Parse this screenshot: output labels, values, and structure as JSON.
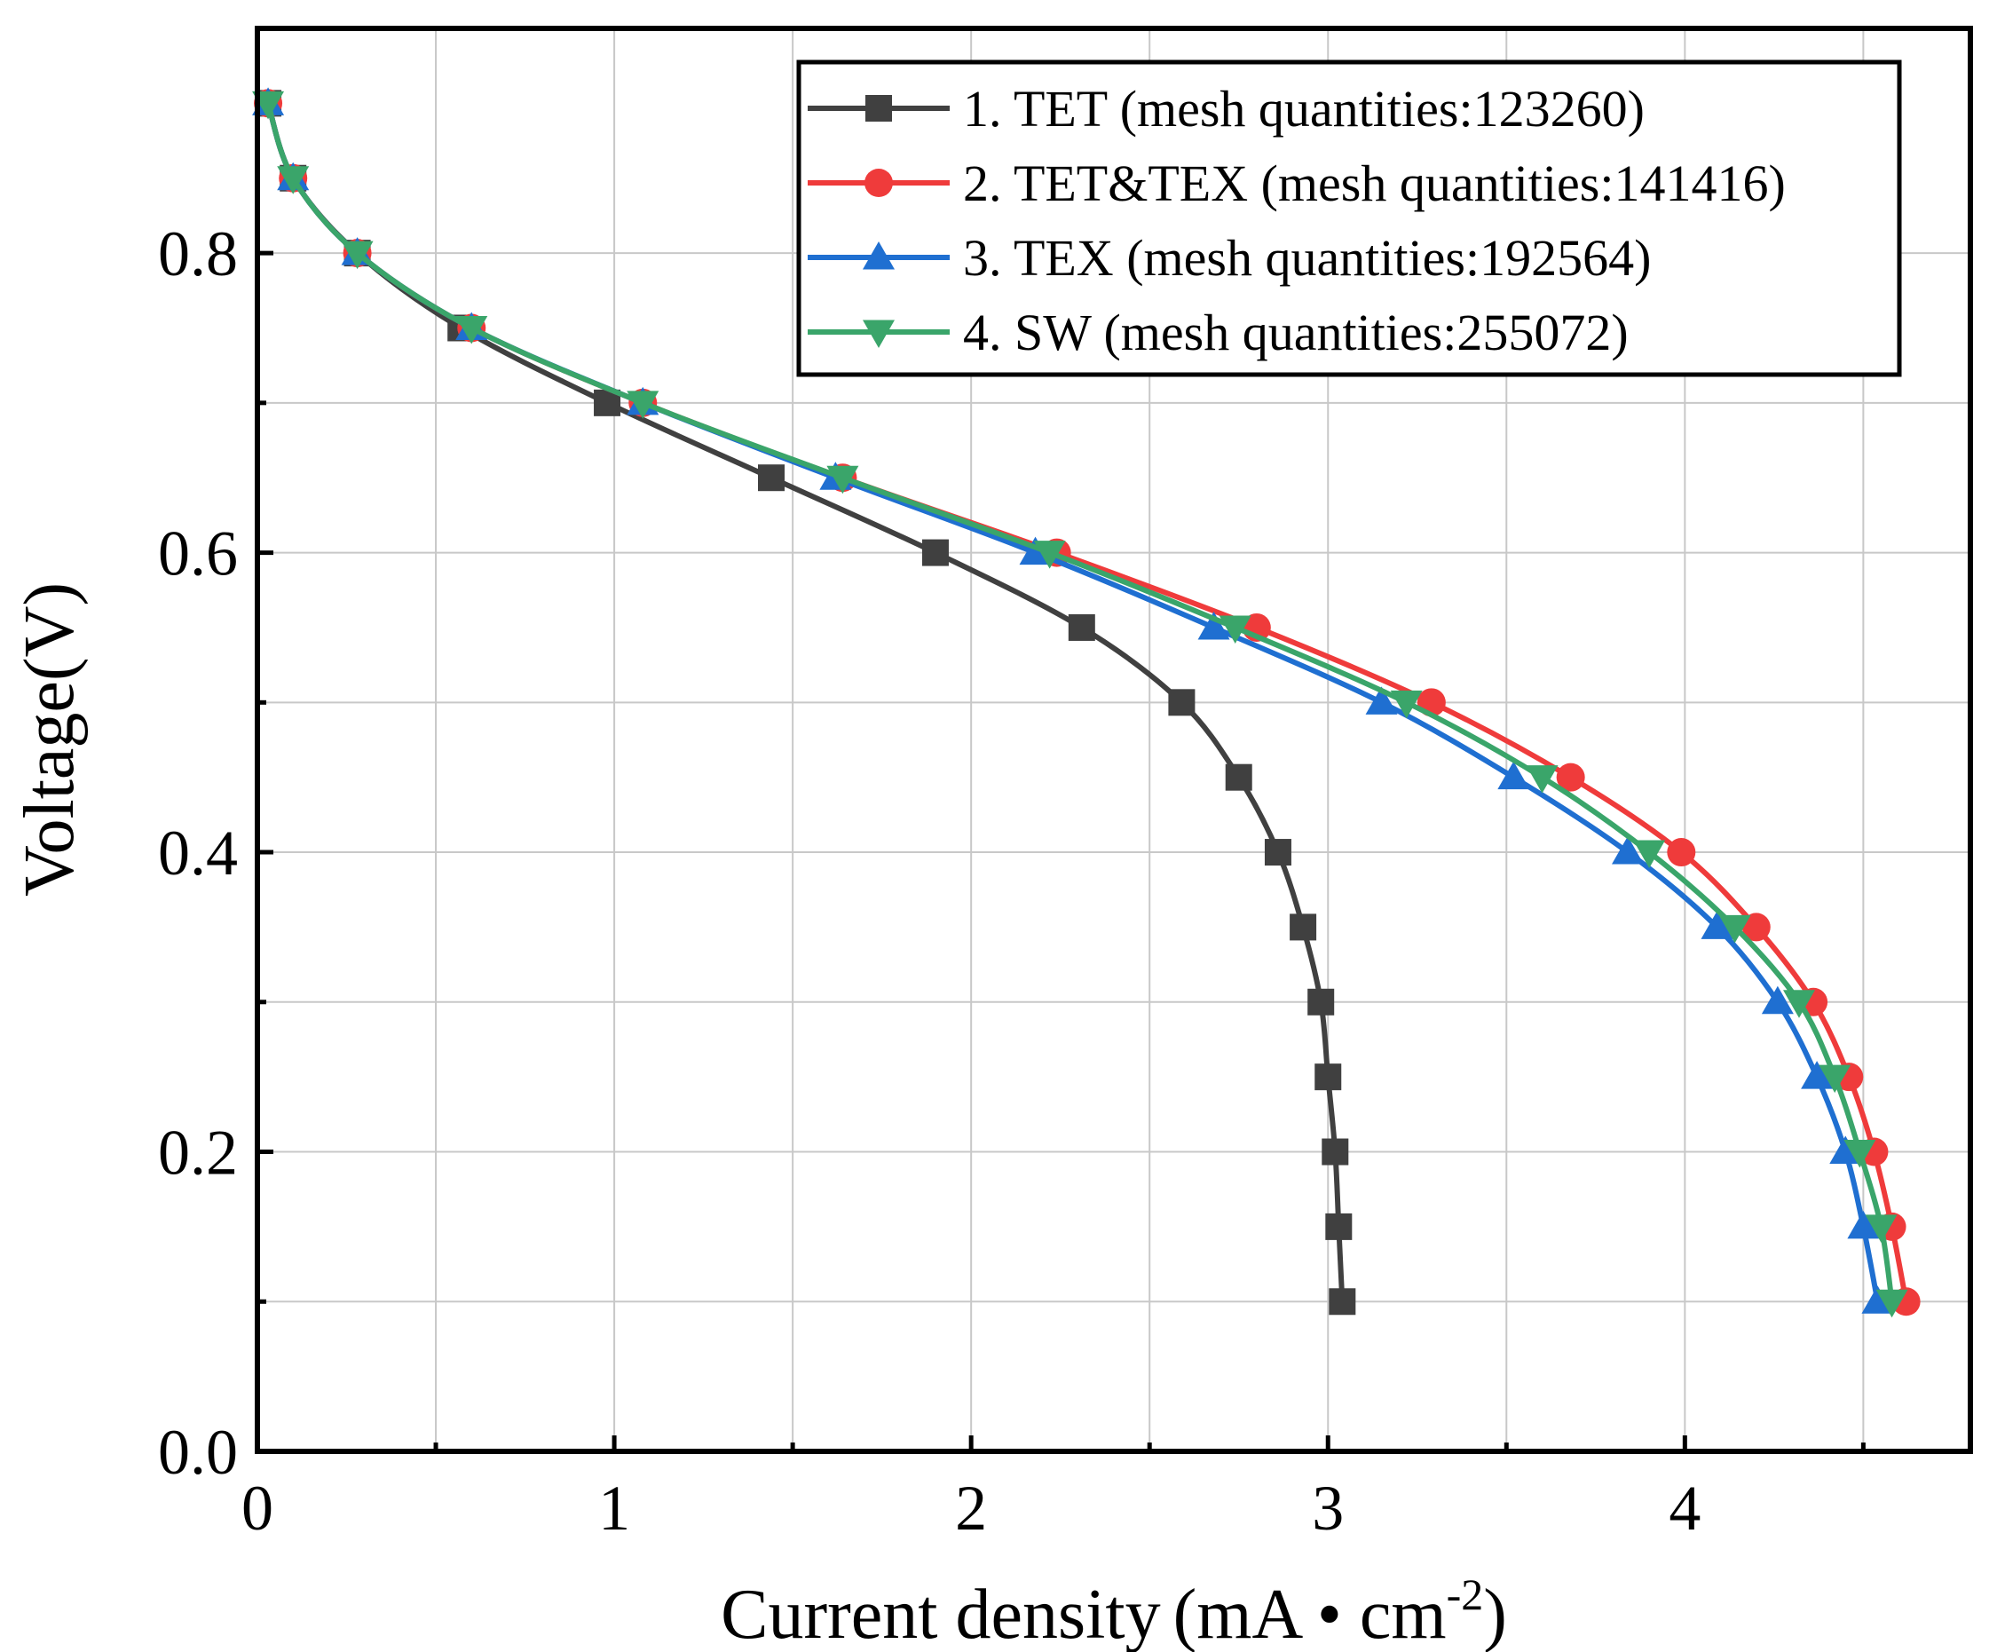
{
  "chart_data": {
    "type": "line",
    "title": "",
    "xlabel": "Current density",
    "xlabel_unit": "(mA • cm",
    "xlabel_unit_exp": "-2",
    "xlabel_unit_close": ")",
    "ylabel": "Voltage(V)",
    "xlim": [
      0,
      4.8
    ],
    "ylim": [
      0,
      0.95
    ],
    "xticks": [
      0,
      1,
      2,
      3,
      4
    ],
    "xtick_labels": [
      "0",
      "1",
      "2",
      "3",
      "4"
    ],
    "x_minor_ticks": [
      0.5,
      1.5,
      2.5,
      3.5,
      4.5
    ],
    "yticks": [
      0.0,
      0.2,
      0.4,
      0.6,
      0.8
    ],
    "ytick_labels": [
      "0.0",
      "0.2",
      "0.4",
      "0.6",
      "0.8"
    ],
    "y_minor_ticks": [
      0.1,
      0.3,
      0.5,
      0.7
    ],
    "grid": true,
    "legend_position": "top-right",
    "series": [
      {
        "name": "1. TET (mesh quantities:123260)",
        "color": "#404040",
        "marker": "square",
        "x": [
          0.03,
          0.1,
          0.28,
          0.57,
          0.98,
          1.44,
          1.9,
          2.31,
          2.59,
          2.75,
          2.86,
          2.93,
          2.98,
          3.0,
          3.02,
          3.03,
          3.04
        ],
        "y": [
          0.9,
          0.85,
          0.8,
          0.75,
          0.7,
          0.65,
          0.6,
          0.55,
          0.5,
          0.45,
          0.4,
          0.35,
          0.3,
          0.25,
          0.2,
          0.15,
          0.1
        ]
      },
      {
        "name": "2. TET&TEX (mesh quantities:141416)",
        "color": "#ef3b3b",
        "marker": "circle",
        "x": [
          0.03,
          0.1,
          0.28,
          0.6,
          1.08,
          1.64,
          2.24,
          2.8,
          3.29,
          3.68,
          3.99,
          4.2,
          4.36,
          4.46,
          4.53,
          4.58,
          4.62
        ],
        "y": [
          0.9,
          0.85,
          0.8,
          0.75,
          0.7,
          0.65,
          0.6,
          0.55,
          0.5,
          0.45,
          0.4,
          0.35,
          0.3,
          0.25,
          0.2,
          0.15,
          0.1
        ]
      },
      {
        "name": "3. TEX (mesh quantities:192564)",
        "color": "#1f6fd1",
        "marker": "triangle-up",
        "x": [
          0.03,
          0.1,
          0.28,
          0.6,
          1.08,
          1.62,
          2.18,
          2.68,
          3.15,
          3.52,
          3.84,
          4.09,
          4.26,
          4.37,
          4.45,
          4.5,
          4.54
        ],
        "y": [
          0.9,
          0.85,
          0.8,
          0.75,
          0.7,
          0.65,
          0.6,
          0.55,
          0.5,
          0.45,
          0.4,
          0.35,
          0.3,
          0.25,
          0.2,
          0.15,
          0.1
        ]
      },
      {
        "name": "4. SW (mesh quantities:255072)",
        "color": "#3aa56a",
        "marker": "triangle-down",
        "x": [
          0.03,
          0.1,
          0.28,
          0.6,
          1.08,
          1.64,
          2.22,
          2.74,
          3.22,
          3.6,
          3.9,
          4.14,
          4.32,
          4.42,
          4.49,
          4.55,
          4.58
        ],
        "y": [
          0.9,
          0.85,
          0.8,
          0.75,
          0.7,
          0.65,
          0.6,
          0.55,
          0.5,
          0.45,
          0.4,
          0.35,
          0.3,
          0.25,
          0.2,
          0.15,
          0.1
        ]
      }
    ]
  }
}
